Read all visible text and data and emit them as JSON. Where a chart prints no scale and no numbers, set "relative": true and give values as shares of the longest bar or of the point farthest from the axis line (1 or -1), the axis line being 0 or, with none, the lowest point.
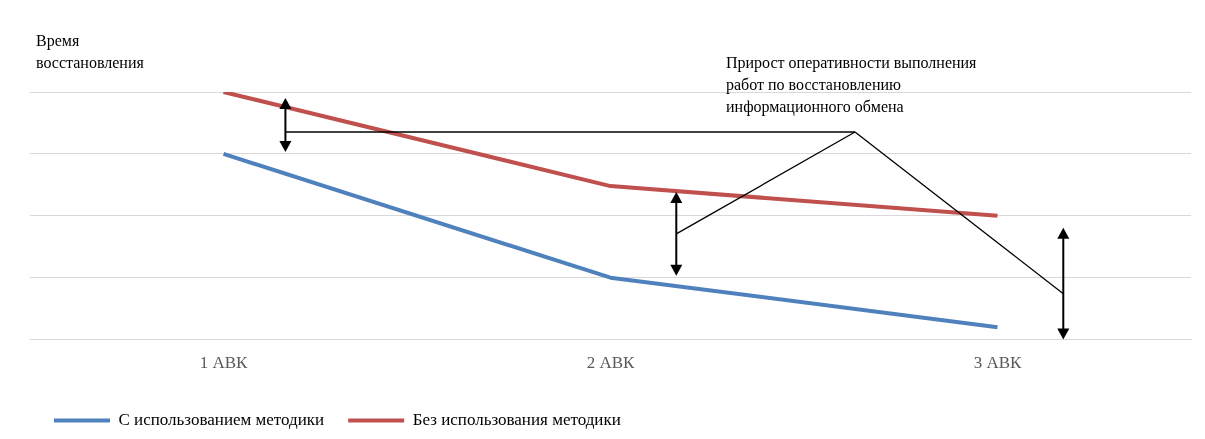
{
  "chart_data": {
    "type": "line",
    "relative": true,
    "ylabel": "Время восстановления",
    "categories": [
      "1 АВК",
      "2 АВК",
      "3 АВК"
    ],
    "series": [
      {
        "name": "С использованием методики",
        "color": "#4f81bd",
        "values": [
          0.75,
          0.25,
          0.05
        ]
      },
      {
        "name": "Без использования методики",
        "color": "#c0504d",
        "values": [
          1,
          0.62,
          0.5
        ]
      }
    ],
    "grid": "y",
    "legend": "bottom left",
    "marker": "none",
    "line_style": "solid",
    "annotations": [
      "Прирост оперативности выполнения работ по восстановлению информационного обмена"
    ]
  }
}
